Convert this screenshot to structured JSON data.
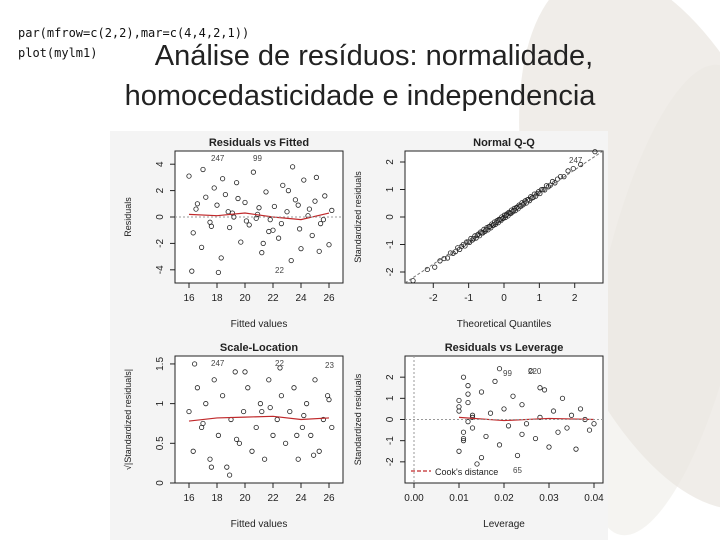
{
  "code_lines": [
    "par(mfrow=c(2,2),mar=c(4,4,2,1))",
    "plot(mylm1)"
  ],
  "slide_title": {
    "line1": "Análise de resíduos: normalidade,",
    "line2": "homocedasticidade e independencia"
  },
  "chart_data": [
    {
      "type": "scatter",
      "title": "Residuals vs Fitted",
      "xlabel": "Fitted values",
      "ylabel": "Residuals",
      "xlim": [
        15,
        27
      ],
      "ylim": [
        -5,
        5
      ],
      "xticks": [
        16,
        18,
        20,
        22,
        24,
        26
      ],
      "yticks": [
        -4,
        -2,
        0,
        2,
        4
      ],
      "annotations": [
        "247",
        "99",
        "22"
      ],
      "x": [
        16.0,
        16.3,
        16.5,
        16.9,
        17.2,
        17.5,
        17.8,
        18.0,
        18.3,
        18.6,
        18.9,
        19.1,
        19.4,
        19.7,
        20.0,
        20.3,
        20.6,
        20.9,
        21.2,
        21.5,
        21.8,
        22.1,
        22.4,
        22.7,
        23.0,
        23.3,
        23.6,
        23.9,
        24.2,
        24.5,
        24.8,
        25.1,
        25.4,
        25.7,
        26.0,
        16.2,
        17.0,
        18.1,
        19.2,
        20.1,
        21.0,
        22.0,
        23.1,
        24.0,
        25.0,
        26.2,
        17.6,
        19.5,
        21.7,
        23.8,
        25.6,
        16.6,
        18.8,
        20.8,
        22.6,
        24.6,
        18.4,
        21.3,
        23.4,
        25.3
      ],
      "y": [
        3.1,
        -1.2,
        0.6,
        -2.3,
        1.5,
        -0.4,
        2.2,
        0.9,
        -3.1,
        1.7,
        -0.8,
        0.3,
        2.6,
        -1.9,
        1.1,
        -0.6,
        3.4,
        0.2,
        -2.7,
        1.9,
        -0.2,
        0.8,
        -1.6,
        2.4,
        0.4,
        -3.3,
        1.3,
        -0.9,
        2.8,
        0.1,
        -1.4,
        3.0,
        -0.5,
        1.6,
        -2.1,
        -4.1,
        3.6,
        -4.2,
        0.0,
        -0.3,
        0.7,
        -1.0,
        2.0,
        -2.4,
        1.2,
        0.5,
        -0.7,
        1.4,
        -1.1,
        0.9,
        -0.2,
        1.0,
        0.4,
        -0.1,
        -0.5,
        0.6,
        2.9,
        -2.0,
        3.8,
        -2.6
      ],
      "smooth": {
        "x": [
          16,
          18,
          20,
          22,
          24,
          26
        ],
        "y": [
          0.2,
          0.1,
          0.3,
          0.0,
          -0.2,
          0.3
        ]
      },
      "line_color": "#c0292b"
    },
    {
      "type": "scatter",
      "title": "Normal Q-Q",
      "xlabel": "Theoretical Quantiles",
      "ylabel": "Standardized residuals",
      "xlim": [
        -2.8,
        2.8
      ],
      "ylim": [
        -2.4,
        2.4
      ],
      "xticks": [
        -2,
        -1,
        0,
        1,
        2
      ],
      "yticks": [
        -2,
        -1,
        0,
        1,
        2
      ],
      "annotations": [
        "247"
      ],
      "n_points": 100,
      "reference_line": {
        "x": [
          -2.8,
          2.8
        ],
        "y": [
          -2.4,
          2.4
        ]
      }
    },
    {
      "type": "scatter",
      "title": "Scale-Location",
      "xlabel": "Fitted values",
      "ylabel": "√|Standardized residuals|",
      "xlim": [
        15,
        27
      ],
      "ylim": [
        0.0,
        1.6
      ],
      "xticks": [
        16,
        18,
        20,
        22,
        24,
        26
      ],
      "yticks": [
        0.0,
        0.5,
        1.0,
        1.5
      ],
      "annotations": [
        "247",
        "22",
        "23"
      ],
      "x": [
        16.0,
        16.3,
        16.6,
        16.9,
        17.2,
        17.5,
        17.8,
        18.1,
        18.4,
        18.7,
        19.0,
        19.3,
        19.6,
        19.9,
        20.2,
        20.5,
        20.8,
        21.1,
        21.4,
        21.7,
        22.0,
        22.3,
        22.6,
        22.9,
        23.2,
        23.5,
        23.8,
        24.1,
        24.4,
        24.7,
        25.0,
        25.3,
        25.6,
        25.9,
        26.2,
        16.4,
        17.6,
        18.9,
        20.0,
        21.2,
        22.5,
        23.7,
        24.9,
        26.0,
        17.0,
        19.4,
        21.8,
        24.2
      ],
      "y": [
        0.9,
        0.4,
        1.2,
        0.7,
        1.0,
        0.3,
        1.3,
        0.6,
        1.1,
        0.2,
        0.8,
        1.4,
        0.5,
        0.9,
        1.2,
        0.4,
        0.7,
        1.0,
        0.3,
        1.3,
        0.6,
        0.8,
        1.1,
        0.5,
        0.9,
        1.2,
        0.3,
        0.7,
        1.0,
        0.6,
        1.3,
        0.4,
        0.8,
        1.1,
        0.7,
        1.5,
        0.2,
        0.1,
        1.4,
        0.9,
        1.45,
        0.6,
        0.35,
        1.05,
        0.75,
        0.55,
        0.95,
        0.85
      ],
      "smooth": {
        "x": [
          16,
          18,
          20,
          22,
          24,
          26
        ],
        "y": [
          0.78,
          0.82,
          0.83,
          0.84,
          0.8,
          0.82
        ]
      },
      "line_color": "#c0292b"
    },
    {
      "type": "scatter",
      "title": "Residuals vs Leverage",
      "xlabel": "Leverage",
      "ylabel": "Standardized residuals",
      "xlim": [
        -0.002,
        0.042
      ],
      "ylim": [
        -3,
        3
      ],
      "xticks": [
        0.0,
        0.01,
        0.02,
        0.03,
        0.04
      ],
      "xtick_labels": [
        "0.00",
        "0.01",
        "0.02",
        "0.03",
        "0.04"
      ],
      "yticks": [
        -2,
        -1,
        0,
        1,
        2
      ],
      "annotations": [
        "99",
        "220",
        "65"
      ],
      "legend": "Cook's distance",
      "x": [
        0.01,
        0.011,
        0.012,
        0.01,
        0.013,
        0.011,
        0.012,
        0.01,
        0.011,
        0.012,
        0.013,
        0.01,
        0.014,
        0.015,
        0.016,
        0.017,
        0.018,
        0.019,
        0.02,
        0.021,
        0.022,
        0.023,
        0.024,
        0.025,
        0.026,
        0.027,
        0.028,
        0.029,
        0.03,
        0.031,
        0.032,
        0.033,
        0.034,
        0.035,
        0.036,
        0.037,
        0.038,
        0.039,
        0.04,
        0.012,
        0.011,
        0.013,
        0.015,
        0.019,
        0.024,
        0.028
      ],
      "y": [
        0.4,
        -0.6,
        1.2,
        -1.5,
        0.2,
        2.0,
        -0.1,
        0.9,
        -1.0,
        1.6,
        -0.4,
        0.6,
        -2.1,
        1.3,
        -0.8,
        0.3,
        1.8,
        -1.2,
        0.5,
        -0.3,
        1.1,
        -1.7,
        0.7,
        -0.2,
        2.3,
        -0.9,
        0.1,
        1.4,
        -1.3,
        0.4,
        -0.6,
        1.0,
        -0.4,
        0.2,
        -1.4,
        0.5,
        0.0,
        -0.5,
        -0.2,
        0.8,
        -0.9,
        0.1,
        -1.8,
        2.4,
        -0.7,
        1.5
      ],
      "smooth": {
        "x": [
          0.01,
          0.02,
          0.03,
          0.04
        ],
        "y": [
          0.1,
          -0.05,
          0.05,
          0.0
        ]
      },
      "line_color": "#c0292b"
    }
  ],
  "colors": {
    "smooth": "#c0292b",
    "points": "#222222",
    "dashed": "#c0292b"
  }
}
